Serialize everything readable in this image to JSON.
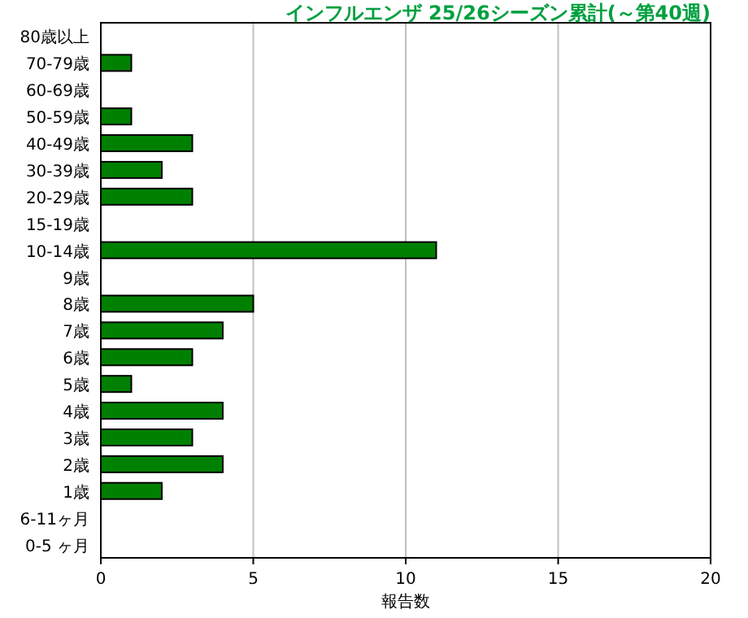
{
  "chart_data": {
    "type": "bar",
    "orientation": "horizontal",
    "title": "インフルエンザ 25/26シーズン累計(～第40週)",
    "xlabel": "報告数",
    "categories": [
      "80歳以上",
      "70-79歳",
      "60-69歳",
      "50-59歳",
      "40-49歳",
      "30-39歳",
      "20-29歳",
      "15-19歳",
      "10-14歳",
      "9歳",
      "8歳",
      "7歳",
      "6歳",
      "5歳",
      "4歳",
      "3歳",
      "2歳",
      "1歳",
      "6-11ヶ月",
      "0-5 ヶ月"
    ],
    "series": [
      {
        "color": "#008000",
        "values": [
          0,
          1,
          0,
          1,
          3,
          2,
          3,
          0,
          11,
          0,
          5,
          4,
          3,
          1,
          4,
          3,
          4,
          2,
          0,
          0
        ]
      }
    ],
    "xlim": [
      0,
      20
    ],
    "xticks": [
      0,
      5,
      10,
      15,
      20
    ],
    "grid": "x"
  }
}
